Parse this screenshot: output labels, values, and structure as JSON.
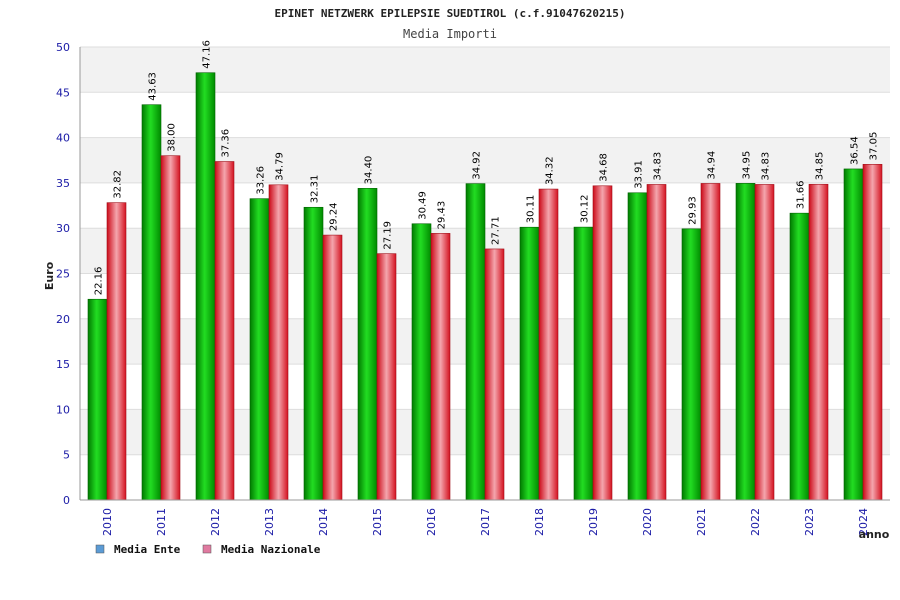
{
  "chart_data": {
    "type": "bar",
    "title": "EPINET NETZWERK EPILEPSIE SUEDTIROL (c.f.91047620215)",
    "subtitle": "Media Importi",
    "ylabel": "Euro",
    "xlabel": "anno",
    "ylim": [
      0,
      50
    ],
    "yticks": [
      0,
      5,
      10,
      15,
      20,
      25,
      30,
      35,
      40,
      45,
      50
    ],
    "grid": true,
    "legend_position": "bottom-left",
    "categories": [
      "2010",
      "2011",
      "2012",
      "2013",
      "2014",
      "2015",
      "2016",
      "2017",
      "2018",
      "2019",
      "2020",
      "2021",
      "2022",
      "2023",
      "2024"
    ],
    "series": [
      {
        "name": "Media Ente",
        "color": "#00b400",
        "legend_color": "#5b9bd5",
        "values": [
          22.16,
          43.63,
          47.16,
          33.26,
          32.31,
          34.4,
          30.49,
          34.92,
          30.11,
          30.12,
          33.91,
          29.93,
          34.95,
          31.66,
          36.54
        ],
        "labels": [
          "22.16",
          "43.63",
          "47.16",
          "33.26",
          "32.31",
          "34.40",
          "30.49",
          "34.92",
          "30.11",
          "30.12",
          "33.91",
          "29.93",
          "34.95",
          "31.66",
          "36.54"
        ]
      },
      {
        "name": "Media Nazionale",
        "color": "#e0202a",
        "legend_color": "#e07aa0",
        "values": [
          32.82,
          38.0,
          37.36,
          34.79,
          29.24,
          27.19,
          29.43,
          27.71,
          34.32,
          34.68,
          34.83,
          34.94,
          34.83,
          34.85,
          37.05
        ],
        "labels": [
          "32.82",
          "38.00",
          "37.36",
          "34.79",
          "29.24",
          "27.19",
          "29.43",
          "27.71",
          "34.32",
          "34.68",
          "34.83",
          "34.94",
          "34.83",
          "34.85",
          "37.05"
        ]
      }
    ]
  }
}
